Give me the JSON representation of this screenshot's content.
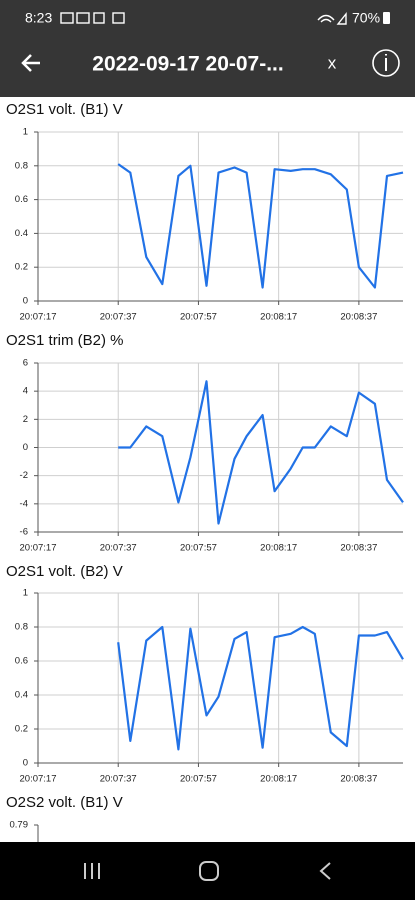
{
  "status_bar": {
    "time": "8:23",
    "battery": "70%"
  },
  "header": {
    "title": "2022-09-17 20-07-...",
    "close": "x"
  },
  "chart_data": [
    {
      "type": "line",
      "title": "O2S1 volt. (B1)  V",
      "x": [
        "20:07:37",
        "20:07:40",
        "20:07:44",
        "20:07:48",
        "20:07:52",
        "20:07:55",
        "20:07:59",
        "20:08:02",
        "20:08:06",
        "20:08:09",
        "20:08:13",
        "20:08:16",
        "20:08:20",
        "20:08:23",
        "20:08:26",
        "20:08:30",
        "20:08:34",
        "20:08:37",
        "20:08:41",
        "20:08:44",
        "20:08:48"
      ],
      "series": [
        {
          "name": "O2S1 volt. (B1)",
          "color": "#2272e6",
          "values": [
            0.81,
            0.76,
            0.26,
            0.1,
            0.74,
            0.8,
            0.09,
            0.76,
            0.79,
            0.76,
            0.08,
            0.78,
            0.77,
            0.78,
            0.78,
            0.75,
            0.66,
            0.2,
            0.08,
            0.74,
            0.76
          ]
        }
      ],
      "xlim": [
        "20:07:17",
        "20:08:48"
      ],
      "xticks": [
        "20:07:17",
        "20:07:37",
        "20:07:57",
        "20:08:17",
        "20:08:37"
      ],
      "ylim": [
        0,
        1
      ],
      "yticks": [
        0,
        0.2,
        0.4,
        0.6,
        0.8,
        1
      ],
      "grid": true
    },
    {
      "type": "line",
      "title": "O2S1 trim (B2)  %",
      "x": [
        "20:07:37",
        "20:07:40",
        "20:07:44",
        "20:07:48",
        "20:07:52",
        "20:07:55",
        "20:07:59",
        "20:08:02",
        "20:08:06",
        "20:08:09",
        "20:08:13",
        "20:08:16",
        "20:08:20",
        "20:08:23",
        "20:08:26",
        "20:08:30",
        "20:08:34",
        "20:08:37",
        "20:08:41",
        "20:08:44",
        "20:08:48"
      ],
      "series": [
        {
          "name": "O2S1 trim (B2)",
          "color": "#2272e6",
          "values": [
            0,
            0,
            1.5,
            0.8,
            -3.9,
            -0.7,
            4.7,
            -5.4,
            -0.8,
            0.8,
            2.3,
            -3.1,
            -1.5,
            0,
            0,
            1.5,
            0.8,
            3.9,
            3.1,
            -2.3,
            -3.9
          ]
        }
      ],
      "xlim": [
        "20:07:17",
        "20:08:48"
      ],
      "xticks": [
        "20:07:17",
        "20:07:37",
        "20:07:57",
        "20:08:17",
        "20:08:37"
      ],
      "ylim": [
        -6,
        6
      ],
      "yticks": [
        -6,
        -4,
        -2,
        0,
        2,
        4,
        6
      ],
      "grid": true
    },
    {
      "type": "line",
      "title": "O2S1 volt. (B2)  V",
      "x": [
        "20:07:37",
        "20:07:40",
        "20:07:44",
        "20:07:48",
        "20:07:52",
        "20:07:55",
        "20:07:59",
        "20:08:02",
        "20:08:06",
        "20:08:09",
        "20:08:13",
        "20:08:16",
        "20:08:20",
        "20:08:23",
        "20:08:26",
        "20:08:30",
        "20:08:34",
        "20:08:37",
        "20:08:41",
        "20:08:44",
        "20:08:48"
      ],
      "series": [
        {
          "name": "O2S1 volt. (B2)",
          "color": "#2272e6",
          "values": [
            0.71,
            0.13,
            0.72,
            0.8,
            0.08,
            0.79,
            0.28,
            0.39,
            0.73,
            0.77,
            0.09,
            0.74,
            0.76,
            0.8,
            0.76,
            0.18,
            0.1,
            0.75,
            0.75,
            0.77,
            0.61
          ]
        }
      ],
      "xlim": [
        "20:07:17",
        "20:08:48"
      ],
      "xticks": [
        "20:07:17",
        "20:07:37",
        "20:07:57",
        "20:08:17",
        "20:08:37"
      ],
      "ylim": [
        0,
        1
      ],
      "yticks": [
        0,
        0.2,
        0.4,
        0.6,
        0.8,
        1
      ],
      "grid": true
    },
    {
      "type": "line",
      "title": "O2S2 volt. (B1)  V",
      "yticks": [
        0.79
      ]
    }
  ]
}
